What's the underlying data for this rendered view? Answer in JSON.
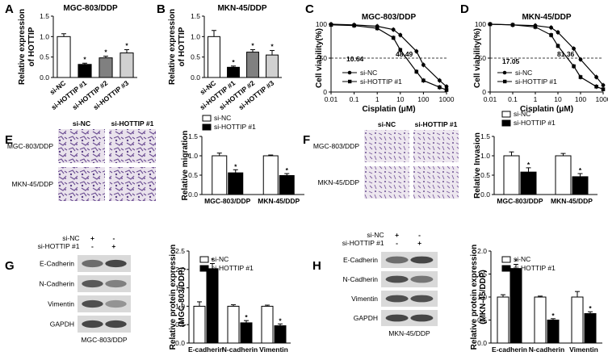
{
  "panels": {
    "A": {
      "letter": "A",
      "title": "MGC-803/DDP",
      "ylabel": [
        "Relative expression",
        "of HOTTIP"
      ],
      "chart_data": {
        "type": "bar",
        "categories": [
          "si-NC",
          "si-HOTTIP #1",
          "si-HOTTIP #2",
          "si-HOTTIP #3"
        ],
        "values": [
          1.0,
          0.32,
          0.48,
          0.6
        ],
        "errors": [
          0.07,
          0.03,
          0.04,
          0.08
        ],
        "significance": [
          "",
          "*",
          "*",
          "*"
        ],
        "yticks": [
          "0.0",
          "0.5",
          "1.0",
          "1.5"
        ],
        "ylim": [
          0,
          1.5
        ],
        "colors": [
          "#ffffff",
          "#000000",
          "#808080",
          "#d0d0d0"
        ]
      }
    },
    "B": {
      "letter": "B",
      "title": "MKN-45/DDP",
      "ylabel": [
        "Relative expression",
        "of HOTTIP"
      ],
      "chart_data": {
        "type": "bar",
        "categories": [
          "si-NC",
          "si-HOTTIP #1",
          "si-HOTTIP #2",
          "si-HOTTIP #3"
        ],
        "values": [
          1.0,
          0.25,
          0.62,
          0.55
        ],
        "errors": [
          0.15,
          0.03,
          0.06,
          0.11
        ],
        "significance": [
          "",
          "*",
          "*",
          "*"
        ],
        "yticks": [
          "0.0",
          "0.5",
          "1.0",
          "1.5"
        ],
        "ylim": [
          0,
          1.5
        ],
        "colors": [
          "#ffffff",
          "#000000",
          "#808080",
          "#d0d0d0"
        ]
      }
    },
    "C": {
      "letter": "C",
      "title": "MGC-803/DDP",
      "ylabel": "Cell viability(%)",
      "xlabel": "Cisplatin (μM)",
      "chart_data": {
        "type": "line",
        "x": [
          0.01,
          0.1,
          1,
          5,
          10,
          50,
          100,
          500,
          1000
        ],
        "xticks": [
          "0.01",
          "0.1",
          "1",
          "10",
          "100",
          "1000"
        ],
        "yticks": [
          "0",
          "50",
          "100"
        ],
        "ylim": [
          0,
          100
        ],
        "ic50_labels": [
          "10.64",
          "48.49"
        ],
        "series": [
          {
            "name": "si-NC",
            "values": [
              100,
              99,
              97,
              92,
              84,
              60,
              40,
              17,
              8
            ]
          },
          {
            "name": "si-HOTTIP #1",
            "values": [
              99,
              98,
              94,
              80,
              62,
              30,
              17,
              7,
              3
            ]
          }
        ]
      }
    },
    "D": {
      "letter": "D",
      "title": "MKN-45/DDP",
      "ylabel": "Cell viability(%)",
      "xlabel": "Cisplatin (μM)",
      "chart_data": {
        "type": "line",
        "x": [
          0.01,
          0.1,
          1,
          5,
          10,
          50,
          100,
          500,
          1000
        ],
        "xticks": [
          "0.01",
          "0.1",
          "1",
          "10",
          "100",
          "1000"
        ],
        "yticks": [
          "0",
          "50",
          "100"
        ],
        "ylim": [
          0,
          100
        ],
        "ic50_labels": [
          "17.05",
          "81.36"
        ],
        "series": [
          {
            "name": "si-NC",
            "values": [
              100,
              99,
              98,
              95,
              88,
              64,
              48,
              22,
              10
            ]
          },
          {
            "name": "si-HOTTIP #1",
            "values": [
              100,
              99,
              96,
              84,
              68,
              38,
              22,
              8,
              4
            ]
          }
        ]
      }
    },
    "E": {
      "letter": "E",
      "col_labels": [
        "si-NC",
        "si-HOTTIP #1"
      ],
      "row_labels": [
        "MGC-803/DDP",
        "MKN-45/DDP"
      ],
      "chart_data": {
        "type": "bar",
        "ylabel": "Relative migration",
        "categories": [
          "MGC-803/DDP",
          "MKN-45/DDP"
        ],
        "yticks": [
          "0.0",
          "0.5",
          "1.0",
          "1.5"
        ],
        "ylim": [
          0,
          1.5
        ],
        "series": [
          {
            "name": "si-NC",
            "values": [
              1.0,
              1.0
            ],
            "errors": [
              0.07,
              0.02
            ]
          },
          {
            "name": "si-HOTTIP #1",
            "values": [
              0.56,
              0.49
            ],
            "errors": [
              0.08,
              0.05
            ]
          }
        ],
        "significance": [
          "*",
          "*"
        ]
      }
    },
    "F": {
      "letter": "F",
      "col_labels": [
        "si-NC",
        "si-HOTTIP #1"
      ],
      "row_labels": [
        "MGC-803/DDP",
        "MKN-45/DDP"
      ],
      "chart_data": {
        "type": "bar",
        "ylabel": "Relative Invasion",
        "categories": [
          "MGC-803/DDP",
          "MKN-45/DDP"
        ],
        "yticks": [
          "0.0",
          "0.5",
          "1.0",
          "1.5"
        ],
        "ylim": [
          0,
          1.5
        ],
        "series": [
          {
            "name": "si-NC",
            "values": [
              1.0,
              1.0
            ],
            "errors": [
              0.1,
              0.06
            ]
          },
          {
            "name": "si-HOTTIP #1",
            "values": [
              0.58,
              0.46
            ],
            "errors": [
              0.11,
              0.08
            ]
          }
        ],
        "significance": [
          "*",
          "*"
        ]
      }
    },
    "G": {
      "letter": "G",
      "treat_labels": [
        "si-NC",
        "si-HOTTIP #1"
      ],
      "treat_signs": [
        [
          "+",
          "-"
        ],
        [
          "-",
          "+"
        ]
      ],
      "bands": [
        "E-Cadherin",
        "N-Cadherin",
        "Vimentin",
        "GAPDH"
      ],
      "cell_line": "MGC-803/DDP",
      "chart_data": {
        "type": "bar",
        "ylabel": [
          "Relative protein expression",
          "(MGC-803/DDP)"
        ],
        "categories": [
          "E-cadherin",
          "N-cadherin",
          "Vimentin"
        ],
        "yticks": [
          "0.0",
          "0.5",
          "1.0",
          "1.5",
          "2.0",
          "2.5"
        ],
        "ylim": [
          0,
          2.5
        ],
        "series": [
          {
            "name": "si-NC",
            "values": [
              1.0,
              1.0,
              1.0
            ],
            "errors": [
              0.12,
              0.04,
              0.03
            ]
          },
          {
            "name": "si-HOTTIP #1",
            "values": [
              2.02,
              0.55,
              0.47
            ],
            "errors": [
              0.14,
              0.06,
              0.05
            ]
          }
        ],
        "significance": [
          "*",
          "*",
          "*"
        ]
      }
    },
    "H": {
      "letter": "H",
      "treat_labels": [
        "si-NC",
        "si-HOTTIP #1"
      ],
      "treat_signs": [
        [
          "+",
          "-"
        ],
        [
          "-",
          "+"
        ]
      ],
      "bands": [
        "E-Cadherin",
        "N-Cadherin",
        "Vimentin",
        "GAPDH"
      ],
      "cell_line": "MKN-45/DDP",
      "chart_data": {
        "type": "bar",
        "ylabel": [
          "Relative protein expression",
          "(MKN-45/DDP)"
        ],
        "categories": [
          "E-cadherin",
          "N-cadherin",
          "Vimentin"
        ],
        "yticks": [
          "0.0",
          "0.5",
          "1.0",
          "1.5",
          "2.0"
        ],
        "ylim": [
          0,
          2.0
        ],
        "series": [
          {
            "name": "si-NC",
            "values": [
              1.0,
              1.0,
              1.0
            ],
            "errors": [
              0.05,
              0.02,
              0.12
            ]
          },
          {
            "name": "si-HOTTIP #1",
            "values": [
              1.62,
              0.5,
              0.64
            ],
            "errors": [
              0.09,
              0.03,
              0.04
            ]
          }
        ],
        "significance": [
          "*",
          "*",
          "*"
        ]
      }
    }
  }
}
